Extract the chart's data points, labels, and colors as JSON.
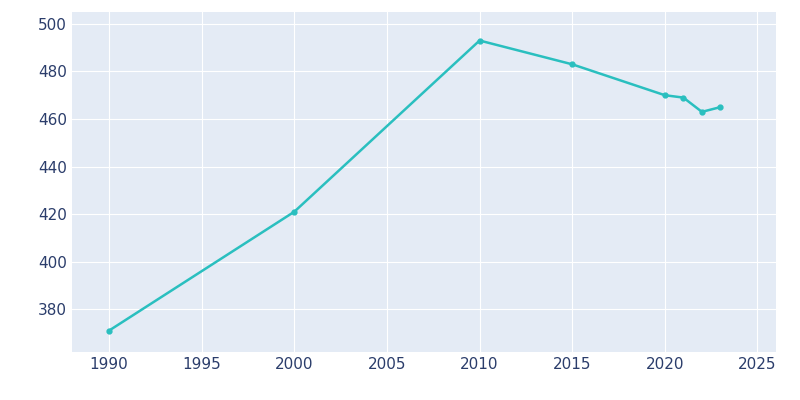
{
  "years": [
    1990,
    2000,
    2010,
    2015,
    2020,
    2021,
    2022,
    2023
  ],
  "population": [
    371,
    421,
    493,
    483,
    470,
    469,
    463,
    465
  ],
  "line_color": "#2ABFBF",
  "marker": "o",
  "marker_size": 3.5,
  "line_width": 1.8,
  "fig_bg_color": "#FFFFFF",
  "plot_bg_color": "#E4EBF5",
  "grid_color": "#FFFFFF",
  "tick_color": "#2B3D6B",
  "xlim": [
    1988,
    2026
  ],
  "ylim": [
    362,
    505
  ],
  "xticks": [
    1990,
    1995,
    2000,
    2005,
    2010,
    2015,
    2020,
    2025
  ],
  "yticks": [
    380,
    400,
    420,
    440,
    460,
    480,
    500
  ]
}
